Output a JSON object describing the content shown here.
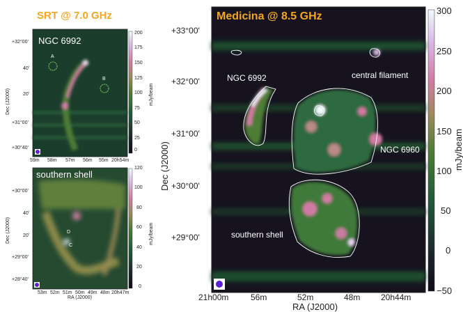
{
  "chart_data": [
    {
      "type": "heatmap",
      "title": "SRT @ 7.0 GHz",
      "xlabel": "",
      "ylabel": "Dec (J2000)",
      "x_ticks": [
        "59m",
        "58m",
        "57m",
        "56m",
        "55m",
        "20h54m"
      ],
      "y_ticks": [
        "+32°00'",
        "40'",
        "20'",
        "+31°00'",
        "+30°40'"
      ],
      "colorbar": {
        "label": "mJy/beam",
        "ticks": [
          "200",
          "175",
          "150",
          "125",
          "100",
          "75",
          "50",
          "25",
          "0"
        ],
        "range": [
          0,
          200
        ]
      },
      "annotations": [
        "NGC 6992",
        "A",
        "B"
      ]
    },
    {
      "type": "heatmap",
      "title": "",
      "xlabel": "RA (J2000)",
      "ylabel": "Dec (J2000)",
      "x_ticks": [
        "53m",
        "52m",
        "51m",
        "50m",
        "49m",
        "48m",
        "20h47m"
      ],
      "y_ticks": [
        "+30°00'",
        "40'",
        "20'",
        "+29°00'",
        "+28°40'"
      ],
      "colorbar": {
        "label": "mJy/beam",
        "ticks": [
          "120",
          "100",
          "80",
          "60",
          "40",
          "20",
          "0"
        ],
        "range": [
          0,
          120
        ]
      },
      "annotations": [
        "southern shell",
        "D",
        "C"
      ]
    },
    {
      "type": "heatmap",
      "title": "Medicina @ 8.5 GHz",
      "xlabel": "RA (J2000)",
      "ylabel": "Dec (J2000)",
      "x_ticks": [
        "21h00m",
        "56m",
        "52m",
        "48m",
        "20h44m"
      ],
      "y_ticks": [
        "+33°00'",
        "+32°00'",
        "+31°00'",
        "+30°00'",
        "+29°00'"
      ],
      "colorbar": {
        "label": "mJy/beam",
        "ticks": [
          "300",
          "250",
          "200",
          "150",
          "100",
          "50",
          "0",
          "−50"
        ],
        "range": [
          -50,
          300
        ]
      },
      "annotations": [
        "NGC 6992",
        "central filament",
        "NGC 6960",
        "southern shell"
      ]
    }
  ],
  "colors": {
    "title_accent": "#f5a623",
    "background": "#15101e",
    "contour": "#ffffff",
    "beam_marker": "#5a1fd1"
  }
}
